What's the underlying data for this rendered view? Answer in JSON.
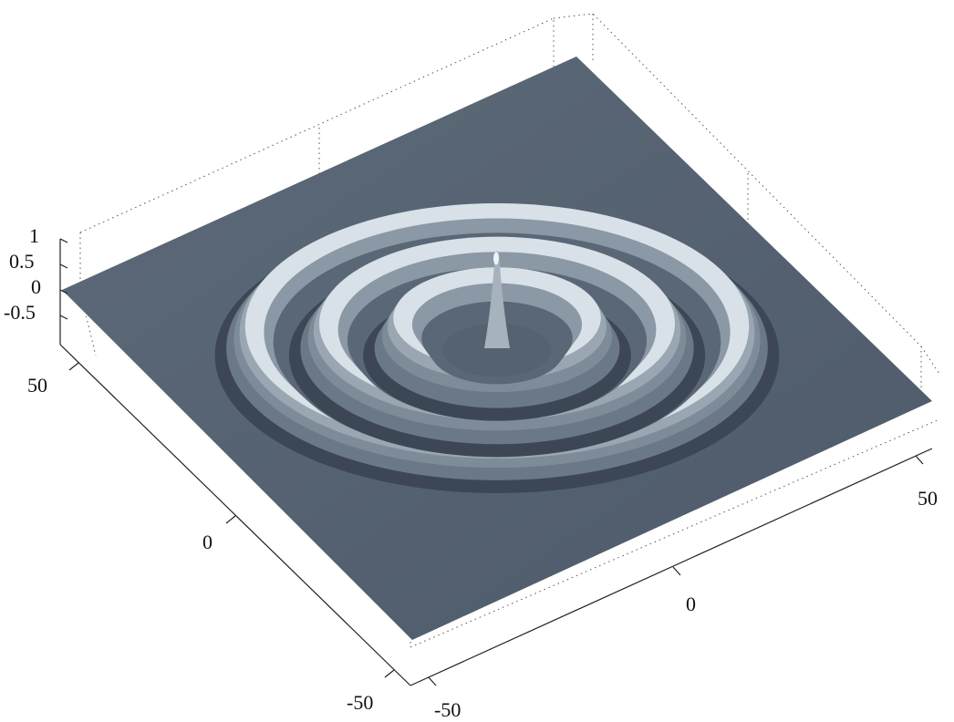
{
  "chart_data": {
    "type": "surface",
    "title": "",
    "xlabel": "",
    "ylabel": "",
    "zlabel": "",
    "function": "ripple surface: central peak with concentric rings",
    "x_ticks": [
      -50,
      0,
      50
    ],
    "y_ticks": [
      -50,
      0,
      50
    ],
    "z_ticks": [
      1,
      0.5,
      0,
      -0.5
    ],
    "xlim": [
      -60,
      60
    ],
    "ylim": [
      -60,
      60
    ],
    "zlim": [
      -1,
      1
    ],
    "grid": false,
    "box": "dotted",
    "rings": [
      {
        "name": "center peak",
        "radius": 0,
        "height": 1.0
      },
      {
        "name": "ring 1",
        "radius": 16,
        "height": 0.55
      },
      {
        "name": "ring 2",
        "radius": 29,
        "height": 0.45
      },
      {
        "name": "ring 3",
        "radius": 42,
        "height": 0.4
      }
    ],
    "surface_color": "#6b7887",
    "highlight_color": "#d8e1e8",
    "shadow_color": "#3c4654",
    "labels": {
      "x_left_neg": "-50",
      "x_left_zero": "0",
      "x_left_pos": "50",
      "y_right_neg": "-50",
      "y_right_zero": "0",
      "y_right_pos": "50",
      "z_1": "1",
      "z_05": "0.5",
      "z_0": "0",
      "z_m05": "-0.5"
    }
  }
}
